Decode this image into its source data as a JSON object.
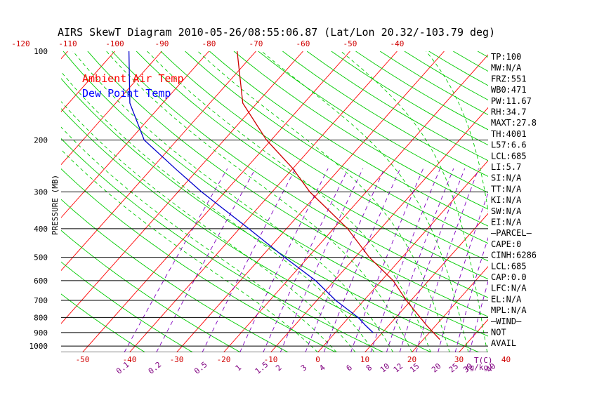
{
  "chart_data": {
    "type": "line",
    "title": "AIRS SkewT Diagram 2010-05-26/08:55:06.87 (Lat/Lon 20.32/-103.79 deg)",
    "ylabel": "PRESSURE (MB)",
    "xlabel_unit": "T(C)",
    "mixing_ratio_unit": "(g/kg)",
    "y_scale": "log",
    "ylim": [
      1050,
      100
    ],
    "pressure_ticks": [
      "100",
      "200",
      "300",
      "400",
      "500",
      "600",
      "700",
      "800",
      "900",
      "1000"
    ],
    "pressure_lines": [
      200,
      300,
      400,
      500,
      600,
      700,
      800,
      900,
      1000,
      1050
    ],
    "top_temp_ticks": [
      "-120",
      "-110",
      "-100",
      "-90",
      "-80",
      "-70",
      "-60",
      "-50",
      "-40"
    ],
    "bottom_temp_ticks": [
      "-50",
      "-40",
      "-30",
      "-20",
      "-10",
      "0",
      "10",
      "20",
      "30",
      "40"
    ],
    "mixing_ratio_ticks": [
      "0.1",
      "0.2",
      "0.5",
      "1",
      "1.5",
      "2",
      "3",
      "4",
      "6",
      "8",
      "10",
      "12",
      "15",
      "20",
      "25",
      "30",
      "40"
    ],
    "grid": true,
    "legend": [
      {
        "name": "Ambient Air Temp",
        "color": "#ff0000"
      },
      {
        "name": "Dew Point Temp",
        "color": "#0000ff"
      }
    ],
    "series": [
      {
        "name": "Ambient Air Temp",
        "color": "#cc0000",
        "pressure": [
          950,
          850,
          700,
          600,
          500,
          400,
          300,
          250,
          200,
          150,
          100
        ],
        "values": [
          23.5,
          18.0,
          9.0,
          2.5,
          -7.0,
          -17.0,
          -32.0,
          -40.0,
          -51.0,
          -63.0,
          -74.0
        ]
      },
      {
        "name": "Dew Point Temp",
        "color": "#0000cc",
        "pressure": [
          900,
          850,
          800,
          700,
          600,
          500,
          400,
          300,
          250,
          200,
          150,
          100
        ],
        "values": [
          8.0,
          5.0,
          2.0,
          -6.0,
          -14.0,
          -25.0,
          -38.0,
          -55.0,
          -65.0,
          -77.0,
          -87.0,
          -97.0
        ]
      }
    ],
    "colors": {
      "isotherm": "#ff0000",
      "dry_adiabat": "#00cc00",
      "moist_adiabat": "#00cc00",
      "mixing_ratio": "#8000c0",
      "tick_red": "#d00000",
      "tick_purple": "#800080"
    }
  },
  "indices": [
    "TP:100",
    "MW:N/A",
    "FRZ:551",
    "WB0:471",
    "PW:11.67",
    "RH:34.7",
    "MAXT:27.8",
    "TH:4001",
    "L57:6.6",
    "LCL:685",
    "LI:5.7",
    "SI:N/A",
    "TT:N/A",
    "KI:N/A",
    "SW:N/A",
    "EI:N/A",
    "—PARCEL—",
    "CAPE:0",
    "CINH:6286",
    "LCL:685",
    "CAP:0.0",
    "LFC:N/A",
    "EL:N/A",
    "MPL:N/A",
    "—WIND—",
    "NOT",
    "AVAIL"
  ]
}
